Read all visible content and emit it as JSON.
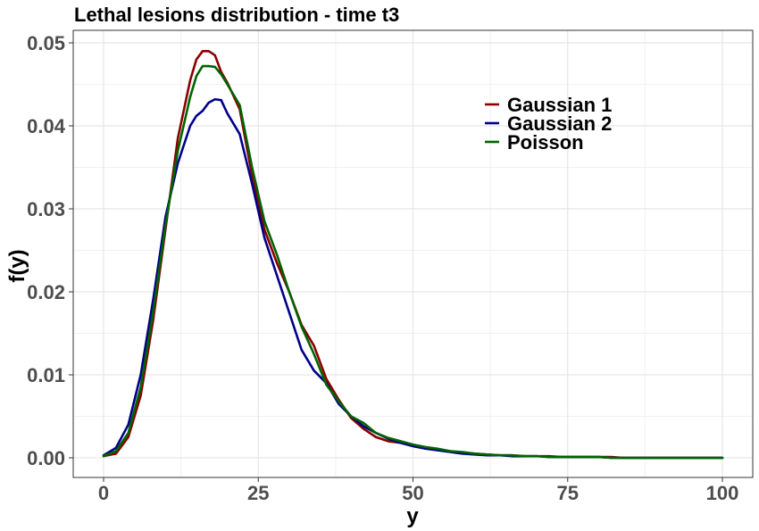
{
  "chart_data": {
    "type": "line",
    "title": "Lethal lesions distribution - time t3",
    "xlabel": "y",
    "ylabel": "f(y)",
    "xlim": [
      0,
      100
    ],
    "ylim": [
      0,
      0.05
    ],
    "xticks": [
      "0",
      "25",
      "50",
      "75",
      "100"
    ],
    "yticks": [
      "0.00",
      "0.01",
      "0.02",
      "0.03",
      "0.04",
      "0.05"
    ],
    "grid": true,
    "legend_position": "top-right",
    "x": [
      0,
      2,
      4,
      6,
      8,
      10,
      12,
      14,
      15,
      16,
      17,
      18,
      19,
      20,
      22,
      24,
      26,
      28,
      30,
      32,
      34,
      36,
      38,
      40,
      42,
      44,
      46,
      48,
      50,
      52,
      54,
      56,
      58,
      60,
      62,
      64,
      66,
      68,
      70,
      72,
      74,
      76,
      78,
      80,
      82,
      84,
      86,
      88,
      90,
      92,
      94,
      96,
      98,
      100
    ],
    "series": [
      {
        "name": "Gaussian 1",
        "color": "#8b0000",
        "values": [
          0.0002,
          0.0005,
          0.0025,
          0.0075,
          0.0165,
          0.0275,
          0.0385,
          0.0455,
          0.048,
          0.049,
          0.049,
          0.0485,
          0.0465,
          0.0452,
          0.042,
          0.034,
          0.0275,
          0.0235,
          0.02,
          0.016,
          0.0135,
          0.0095,
          0.007,
          0.0048,
          0.0035,
          0.0025,
          0.002,
          0.0018,
          0.0015,
          0.0012,
          0.001,
          0.0008,
          0.0006,
          0.0005,
          0.0004,
          0.0003,
          0.0003,
          0.0002,
          0.0002,
          0.0002,
          0.0001,
          0.0001,
          0.0001,
          0.0001,
          0.0001,
          0.0,
          0.0,
          0.0,
          0.0,
          0.0,
          0.0,
          0.0,
          0.0,
          0.0
        ]
      },
      {
        "name": "Gaussian 2",
        "color": "#00008b",
        "values": [
          0.0003,
          0.0012,
          0.004,
          0.01,
          0.019,
          0.029,
          0.0355,
          0.04,
          0.0412,
          0.0418,
          0.0428,
          0.0432,
          0.0431,
          0.0415,
          0.039,
          0.033,
          0.0265,
          0.022,
          0.0175,
          0.013,
          0.0105,
          0.009,
          0.0065,
          0.005,
          0.0038,
          0.003,
          0.0023,
          0.0018,
          0.0014,
          0.0011,
          0.0009,
          0.0007,
          0.0005,
          0.0004,
          0.0003,
          0.0003,
          0.0002,
          0.0002,
          0.0002,
          0.0001,
          0.0001,
          0.0001,
          0.0001,
          0.0001,
          0.0,
          0.0,
          0.0,
          0.0,
          0.0,
          0.0,
          0.0,
          0.0,
          0.0,
          0.0
        ]
      },
      {
        "name": "Poisson",
        "color": "#006400",
        "values": [
          0.0002,
          0.0008,
          0.003,
          0.0085,
          0.0175,
          0.028,
          0.037,
          0.0435,
          0.046,
          0.0472,
          0.0472,
          0.0471,
          0.0462,
          0.045,
          0.0425,
          0.035,
          0.0285,
          0.0245,
          0.02,
          0.0158,
          0.0125,
          0.0088,
          0.0068,
          0.005,
          0.0042,
          0.003,
          0.0024,
          0.002,
          0.0016,
          0.0013,
          0.0011,
          0.0008,
          0.0007,
          0.0005,
          0.0004,
          0.0003,
          0.0003,
          0.0002,
          0.0002,
          0.0001,
          0.0001,
          0.0001,
          0.0001,
          0.0001,
          0.0,
          0.0,
          0.0,
          0.0,
          0.0,
          0.0,
          0.0,
          0.0,
          0.0,
          0.0
        ]
      }
    ]
  }
}
